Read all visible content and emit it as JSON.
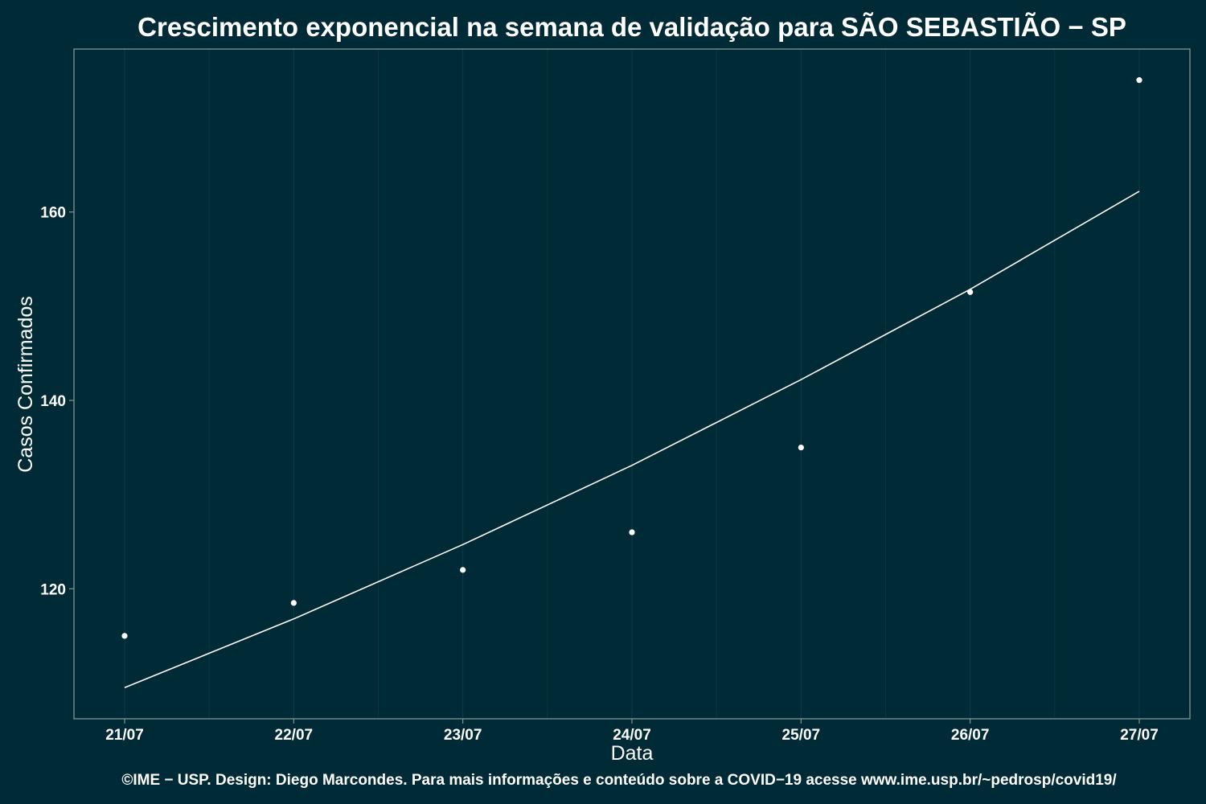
{
  "chart_data": {
    "type": "scatter",
    "title": "Crescimento exponencial na semana de validação para SÃO SEBASTIÃO − SP",
    "xlabel": "Data",
    "ylabel": "Casos Confirmados",
    "categories": [
      "21/07",
      "22/07",
      "23/07",
      "24/07",
      "25/07",
      "26/07",
      "27/07"
    ],
    "ylim": [
      106.2,
      177.3
    ],
    "yticks": [
      120,
      140,
      160
    ],
    "grid": true,
    "legend": "none",
    "series": [
      {
        "kind": "points",
        "values": [
          115,
          118.5,
          122,
          126,
          135,
          151.5,
          174
        ]
      },
      {
        "kind": "fit-line",
        "values": [
          109.5,
          116.8,
          124.7,
          133.1,
          142.2,
          151.8,
          162.2
        ]
      }
    ]
  },
  "footer": "©IME − USP. Design: Diego Marcondes. Para mais informações e conteúdo sobre a COVID−19 acesse www.ime.usp.br/~pedrosp/covid19/",
  "colors": {
    "background": "#002b36",
    "panel_border": "#839496",
    "grid": "#0a3a44",
    "marks": "#ffffff"
  }
}
